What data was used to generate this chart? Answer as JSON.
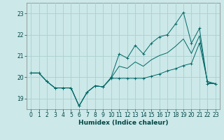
{
  "title": "",
  "xlabel": "Humidex (Indice chaleur)",
  "ylabel": "",
  "background_color": "#cce8e8",
  "grid_color": "#aacfcf",
  "line_color": "#006868",
  "xlim": [
    -0.5,
    23.5
  ],
  "ylim": [
    18.5,
    23.5
  ],
  "yticks": [
    19,
    20,
    21,
    22,
    23
  ],
  "xticks": [
    0,
    1,
    2,
    3,
    4,
    5,
    6,
    7,
    8,
    9,
    10,
    11,
    12,
    13,
    14,
    15,
    16,
    17,
    18,
    19,
    20,
    21,
    22,
    23
  ],
  "line1_x": [
    0,
    1,
    2,
    3,
    4,
    5,
    6,
    7,
    8,
    9,
    10,
    11,
    12,
    13,
    14,
    15,
    16,
    17,
    18,
    19,
    20,
    21,
    22,
    23
  ],
  "line1_y": [
    20.2,
    20.2,
    19.8,
    19.5,
    19.5,
    19.5,
    18.65,
    19.3,
    19.6,
    19.55,
    20.0,
    21.1,
    20.9,
    21.5,
    21.1,
    21.6,
    21.9,
    22.0,
    22.5,
    23.05,
    21.6,
    22.3,
    19.7,
    19.7
  ],
  "line2_x": [
    0,
    1,
    2,
    3,
    4,
    5,
    6,
    7,
    8,
    9,
    10,
    11,
    12,
    13,
    14,
    15,
    16,
    17,
    18,
    19,
    20,
    21,
    22,
    23
  ],
  "line2_y": [
    20.2,
    20.2,
    19.8,
    19.5,
    19.5,
    19.5,
    18.65,
    19.3,
    19.6,
    19.55,
    19.95,
    19.95,
    19.95,
    19.95,
    19.95,
    20.05,
    20.15,
    20.3,
    20.4,
    20.55,
    20.65,
    21.6,
    19.8,
    19.7
  ],
  "line3_x": [
    0,
    1,
    2,
    3,
    4,
    5,
    6,
    7,
    8,
    9,
    10,
    11,
    12,
    13,
    14,
    15,
    16,
    17,
    18,
    19,
    20,
    21,
    22,
    23
  ],
  "line3_y": [
    20.2,
    20.2,
    19.8,
    19.5,
    19.5,
    19.5,
    18.65,
    19.3,
    19.6,
    19.55,
    19.97,
    20.52,
    20.42,
    20.72,
    20.52,
    20.82,
    21.02,
    21.15,
    21.45,
    21.8,
    21.12,
    21.95,
    19.75,
    19.7
  ],
  "tick_fontsize": 5.5,
  "xlabel_fontsize": 6.5
}
